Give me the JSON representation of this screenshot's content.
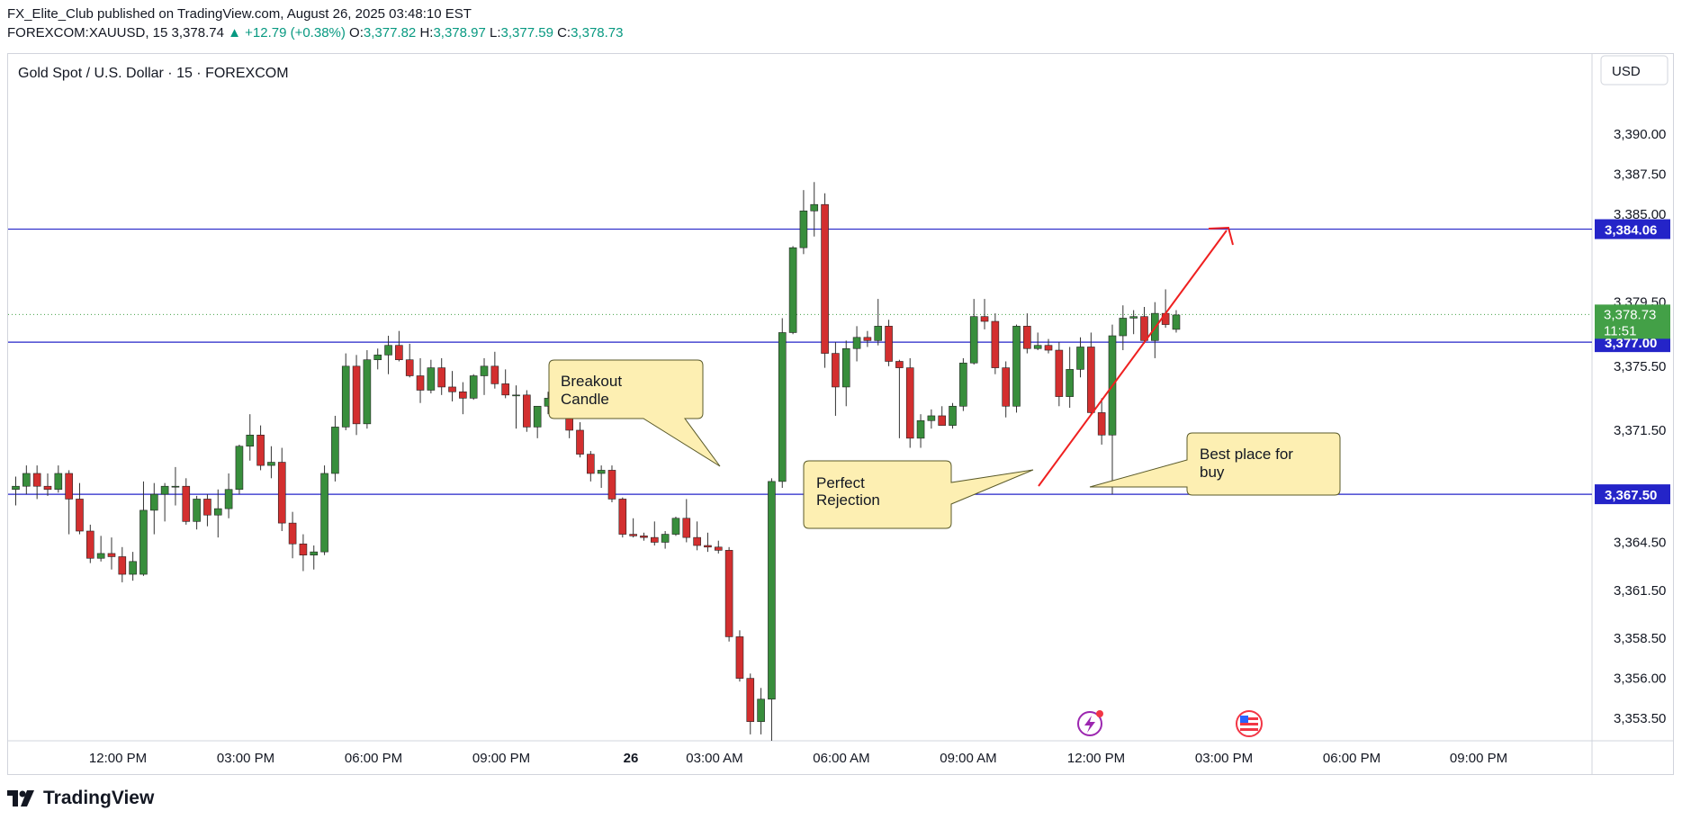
{
  "header": {
    "line1": "FX_Elite_Club published on TradingView.com, August 26, 2025 03:48:10 EST",
    "symbol": "FOREXCOM:XAUUSD, 15",
    "last": "3,378.74",
    "change": "▲ +12.79 (+0.38%)",
    "o_label": "O:",
    "o_val": "3,377.82",
    "h_label": "H:",
    "h_val": "3,378.97",
    "l_label": "L:",
    "l_val": "3,377.59",
    "c_label": "C:",
    "c_val": "3,378.73"
  },
  "footer": {
    "brand": "TradingView"
  },
  "colors": {
    "up": "#26a69a",
    "up_body": "#388e3c",
    "down": "#d32f2f",
    "level": "#2424c8",
    "arrow": "#ef2020",
    "callout_fill": "#fdefb2",
    "price_tag": "#2424c8",
    "last_tag": "#43a047"
  },
  "chart_data": {
    "type": "candlestick",
    "title": "Gold Spot / U.S. Dollar · 15 · FOREXCOM",
    "currency": "USD",
    "ylim": [
      3352.1,
      3395.0
    ],
    "y_ticks": [
      3390.0,
      3387.5,
      3375.5,
      3371.5,
      3364.5,
      3361.5,
      3358.5,
      3356.0,
      3353.5
    ],
    "y_tick_labels": [
      "3,390.00",
      "3,387.50",
      "3,375.50",
      "3,371.50",
      "3,364.50",
      "3,361.50",
      "3,358.50",
      "3,356.00",
      "3,353.50"
    ],
    "x_tick_labels": [
      "12:00 PM",
      "03:00 PM",
      "06:00 PM",
      "09:00 PM",
      "26",
      "03:00 AM",
      "06:00 AM",
      "09:00 AM",
      "12:00 PM",
      "03:00 PM",
      "06:00 PM",
      "09:00 PM"
    ],
    "horizontal_levels": [
      {
        "price": 3384.06,
        "label": "3,384.06"
      },
      {
        "price": 3377.0,
        "label": "3,377.00"
      },
      {
        "price": 3367.5,
        "label": "3,367.50"
      }
    ],
    "current_price": {
      "price": 3378.73,
      "label": "3,378.73",
      "countdown": "11:51"
    },
    "partially_hidden_ticks": [
      "3,379.50",
      "3,385.00"
    ],
    "annotations": [
      {
        "text_lines": [
          "Breakout",
          "Candle"
        ]
      },
      {
        "text_lines": [
          "Perfect",
          "Rejection"
        ]
      },
      {
        "text_lines": [
          "Best place for",
          "buy"
        ]
      }
    ],
    "candles": [
      [
        3367.8,
        3368.6,
        3366.8,
        3368.0
      ],
      [
        3368.0,
        3369.3,
        3367.5,
        3368.8
      ],
      [
        3368.8,
        3369.3,
        3367.2,
        3368.0
      ],
      [
        3368.0,
        3368.8,
        3367.4,
        3367.8
      ],
      [
        3367.8,
        3369.3,
        3367.6,
        3368.8
      ],
      [
        3368.8,
        3369.0,
        3365.0,
        3367.2
      ],
      [
        3367.2,
        3368.2,
        3365.0,
        3365.2
      ],
      [
        3365.2,
        3365.6,
        3363.2,
        3363.5
      ],
      [
        3363.5,
        3364.9,
        3363.3,
        3363.8
      ],
      [
        3363.8,
        3364.8,
        3362.8,
        3363.6
      ],
      [
        3363.6,
        3364.2,
        3362.0,
        3362.5
      ],
      [
        3362.5,
        3363.9,
        3362.1,
        3363.3
      ],
      [
        3362.5,
        3368.3,
        3362.4,
        3366.5
      ],
      [
        3366.5,
        3368.2,
        3365.0,
        3367.5
      ],
      [
        3367.5,
        3368.2,
        3365.8,
        3368.0
      ],
      [
        3368.0,
        3369.2,
        3366.8,
        3368.0
      ],
      [
        3368.0,
        3368.5,
        3365.6,
        3365.8
      ],
      [
        3365.8,
        3367.4,
        3365.3,
        3367.2
      ],
      [
        3367.2,
        3367.5,
        3365.5,
        3366.2
      ],
      [
        3366.2,
        3367.8,
        3364.8,
        3366.6
      ],
      [
        3366.6,
        3368.8,
        3366.0,
        3367.8
      ],
      [
        3367.8,
        3370.6,
        3367.5,
        3370.5
      ],
      [
        3370.5,
        3372.5,
        3369.6,
        3371.2
      ],
      [
        3371.2,
        3371.8,
        3369.0,
        3369.3
      ],
      [
        3369.3,
        3370.5,
        3368.5,
        3369.5
      ],
      [
        3369.5,
        3370.4,
        3365.2,
        3365.7
      ],
      [
        3365.7,
        3366.4,
        3363.5,
        3364.4
      ],
      [
        3364.4,
        3365.0,
        3362.7,
        3363.7
      ],
      [
        3363.7,
        3364.3,
        3362.8,
        3363.9
      ],
      [
        3363.9,
        3369.3,
        3363.7,
        3368.8
      ],
      [
        3368.8,
        3372.4,
        3368.3,
        3371.7
      ],
      [
        3371.7,
        3376.3,
        3371.5,
        3375.5
      ],
      [
        3375.5,
        3376.2,
        3371.2,
        3371.9
      ],
      [
        3371.9,
        3376.5,
        3371.6,
        3375.9
      ],
      [
        3375.9,
        3376.6,
        3375.3,
        3376.2
      ],
      [
        3376.2,
        3377.4,
        3375.0,
        3376.8
      ],
      [
        3376.8,
        3377.7,
        3375.8,
        3375.9
      ],
      [
        3375.9,
        3376.9,
        3374.8,
        3374.9
      ],
      [
        3374.9,
        3376.0,
        3373.2,
        3374.0
      ],
      [
        3374.0,
        3375.9,
        3373.8,
        3375.4
      ],
      [
        3375.4,
        3376.0,
        3373.7,
        3374.2
      ],
      [
        3374.2,
        3375.2,
        3373.3,
        3373.9
      ],
      [
        3373.9,
        3374.5,
        3372.5,
        3373.5
      ],
      [
        3373.5,
        3375.0,
        3373.4,
        3374.9
      ],
      [
        3374.9,
        3376.0,
        3373.7,
        3375.5
      ],
      [
        3375.5,
        3376.4,
        3374.1,
        3374.4
      ],
      [
        3374.4,
        3375.3,
        3373.5,
        3373.7
      ],
      [
        3373.7,
        3374.3,
        3371.6,
        3373.7
      ],
      [
        3373.7,
        3374.0,
        3371.4,
        3371.7
      ],
      [
        3371.7,
        3373.0,
        3371.0,
        3373.0
      ],
      [
        3373.0,
        3373.9,
        3372.5,
        3373.5
      ],
      [
        3373.5,
        3373.8,
        3372.9,
        3373.2
      ],
      [
        3373.2,
        3373.5,
        3371.0,
        3371.5
      ],
      [
        3371.5,
        3372.0,
        3369.8,
        3370.0
      ],
      [
        3370.0,
        3370.2,
        3368.3,
        3368.8
      ],
      [
        3368.8,
        3369.3,
        3367.9,
        3369.0
      ],
      [
        3369.0,
        3369.3,
        3367.0,
        3367.2
      ],
      [
        3367.2,
        3367.3,
        3364.8,
        3365.0
      ],
      [
        3365.0,
        3366.0,
        3364.8,
        3364.9
      ],
      [
        3364.9,
        3365.1,
        3364.6,
        3364.8
      ],
      [
        3364.8,
        3365.8,
        3364.3,
        3364.5
      ],
      [
        3364.5,
        3365.2,
        3364.1,
        3365.0
      ],
      [
        3365.0,
        3366.1,
        3364.9,
        3366.0
      ],
      [
        3366.0,
        3367.2,
        3364.5,
        3364.8
      ],
      [
        3364.8,
        3365.8,
        3364.0,
        3364.3
      ],
      [
        3364.3,
        3365.1,
        3363.9,
        3364.2
      ],
      [
        3364.2,
        3364.6,
        3363.8,
        3364.0
      ],
      [
        3364.0,
        3364.2,
        3358.3,
        3358.6
      ],
      [
        3358.6,
        3359.0,
        3355.8,
        3356.0
      ],
      [
        3356.0,
        3356.3,
        3352.5,
        3353.3
      ],
      [
        3353.3,
        3355.4,
        3352.5,
        3354.7
      ],
      [
        3354.7,
        3368.5,
        3352.1,
        3368.3
      ],
      [
        3368.3,
        3378.5,
        3367.9,
        3377.6
      ],
      [
        3377.6,
        3383.0,
        3377.5,
        3382.9
      ],
      [
        3382.9,
        3386.5,
        3382.5,
        3385.2
      ],
      [
        3385.2,
        3387.0,
        3383.6,
        3385.6
      ],
      [
        3385.6,
        3386.3,
        3375.4,
        3376.3
      ],
      [
        3376.3,
        3377.0,
        3372.4,
        3374.2
      ],
      [
        3374.2,
        3377.1,
        3373.0,
        3376.6
      ],
      [
        3376.6,
        3378.0,
        3375.8,
        3377.3
      ],
      [
        3377.3,
        3377.7,
        3376.7,
        3377.1
      ],
      [
        3377.1,
        3379.7,
        3376.8,
        3378.0
      ],
      [
        3378.0,
        3378.4,
        3375.5,
        3375.8
      ],
      [
        3375.8,
        3375.9,
        3371.0,
        3375.4
      ],
      [
        3375.4,
        3376.0,
        3370.4,
        3371.0
      ],
      [
        3371.0,
        3372.5,
        3370.4,
        3372.1
      ],
      [
        3372.1,
        3372.8,
        3371.6,
        3372.4
      ],
      [
        3372.4,
        3373.0,
        3371.8,
        3371.8
      ],
      [
        3371.8,
        3373.2,
        3371.6,
        3373.0
      ],
      [
        3373.0,
        3376.0,
        3372.7,
        3375.7
      ],
      [
        3375.7,
        3379.7,
        3375.6,
        3378.6
      ],
      [
        3378.6,
        3379.7,
        3377.8,
        3378.3
      ],
      [
        3378.3,
        3378.8,
        3375.0,
        3375.4
      ],
      [
        3375.4,
        3375.8,
        3372.3,
        3373.0
      ],
      [
        3373.0,
        3378.1,
        3372.6,
        3378.0
      ],
      [
        3378.0,
        3378.8,
        3376.3,
        3376.6
      ],
      [
        3376.6,
        3377.6,
        3376.5,
        3376.8
      ],
      [
        3376.8,
        3377.2,
        3376.3,
        3376.5
      ],
      [
        3376.5,
        3377.0,
        3373.0,
        3373.6
      ],
      [
        3373.6,
        3376.7,
        3372.9,
        3375.3
      ],
      [
        3375.3,
        3377.3,
        3374.8,
        3376.7
      ],
      [
        3376.7,
        3377.6,
        3372.5,
        3372.6
      ],
      [
        3372.6,
        3373.5,
        3370.6,
        3371.2
      ],
      [
        3371.2,
        3378.1,
        3367.5,
        3377.4
      ],
      [
        3377.4,
        3379.3,
        3376.5,
        3378.5
      ],
      [
        3378.5,
        3379.0,
        3377.5,
        3378.6
      ],
      [
        3378.6,
        3379.2,
        3376.9,
        3377.1
      ],
      [
        3377.1,
        3379.5,
        3376.0,
        3378.8
      ],
      [
        3378.8,
        3380.3,
        3377.9,
        3378.1
      ],
      [
        3377.8,
        3379.0,
        3377.6,
        3378.7
      ]
    ]
  }
}
